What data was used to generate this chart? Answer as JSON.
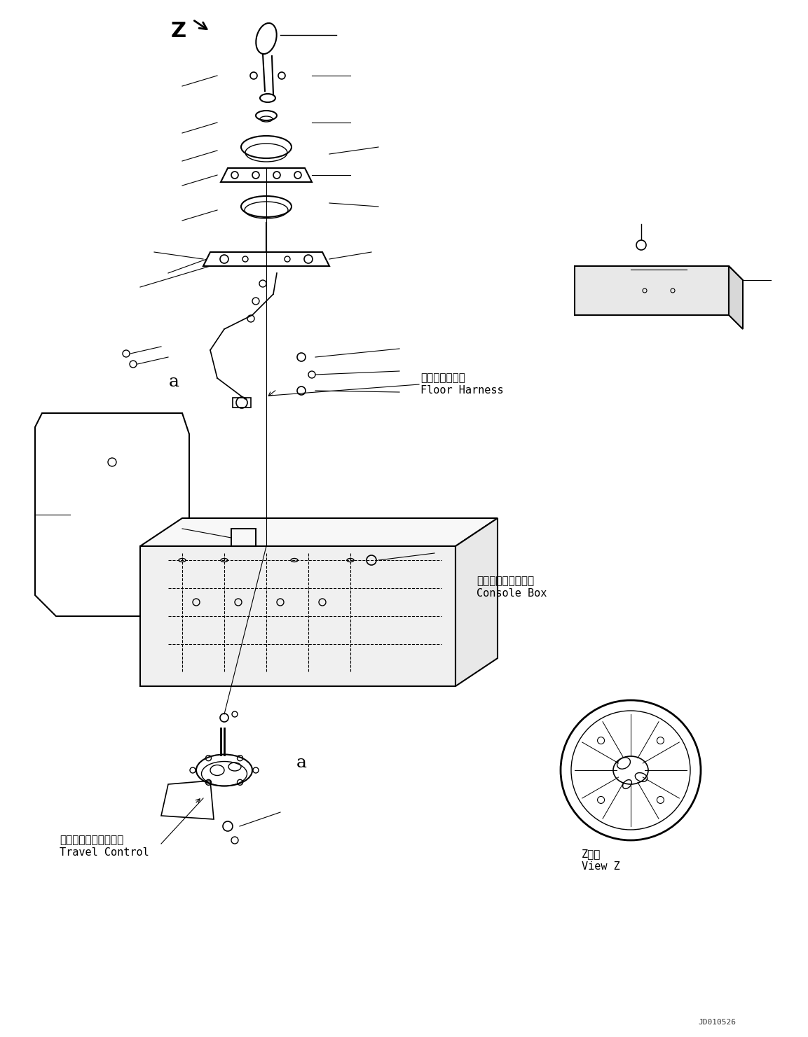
{
  "figure_width": 11.53,
  "figure_height": 14.81,
  "dpi": 100,
  "background_color": "#ffffff",
  "title_text": "",
  "part_number": "JD010526",
  "labels": {
    "floor_harness_jp": "フロアハーネス",
    "floor_harness_en": "Floor Harness",
    "console_box_jp": "コンソールボックス",
    "console_box_en": "Console Box",
    "travel_control_jp": "トラベルコントロール",
    "travel_control_en": "Travel Control",
    "view_z_jp": "Z　視",
    "view_z_en": "View Z",
    "z_marker": "Z",
    "a_label_1": "a",
    "a_label_2": "a"
  },
  "line_color": "#000000",
  "line_width": 1.0,
  "font_size_label": 11,
  "font_size_small": 9,
  "font_size_marker": 16,
  "font_family": "monospace"
}
